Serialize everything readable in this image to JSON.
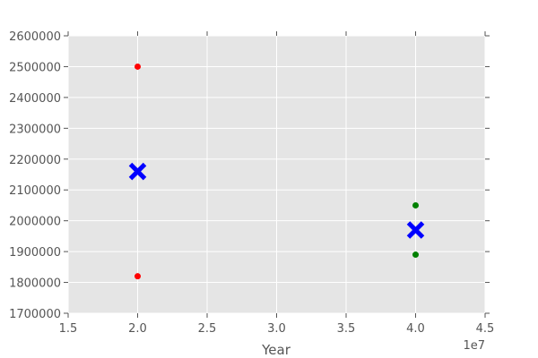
{
  "chart_data": {
    "type": "scatter",
    "xlabel": "Year",
    "ylabel": "",
    "x_offset_label": "1e7",
    "xlim": [
      15000000,
      45000000
    ],
    "ylim": [
      1700000,
      2600000
    ],
    "grid": true,
    "x_ticks": [
      15000000,
      20000000,
      25000000,
      30000000,
      35000000,
      40000000,
      45000000
    ],
    "x_tick_labels": [
      "1.5",
      "2.0",
      "2.5",
      "3.0",
      "3.5",
      "4.0",
      "4.5"
    ],
    "y_ticks": [
      1700000,
      1800000,
      1900000,
      2000000,
      2100000,
      2200000,
      2300000,
      2400000,
      2500000,
      2600000
    ],
    "y_tick_labels": [
      "1700000",
      "1800000",
      "1900000",
      "2000000",
      "2100000",
      "2200000",
      "2300000",
      "2400000",
      "2500000",
      "2600000"
    ],
    "series": [
      {
        "color": "#ff0000",
        "marker": "circle",
        "points": [
          {
            "x": 20000000,
            "y": 2500000
          },
          {
            "x": 20000000,
            "y": 1820000
          }
        ]
      },
      {
        "color": "#008000",
        "marker": "circle",
        "points": [
          {
            "x": 40000000,
            "y": 2050000
          },
          {
            "x": 40000000,
            "y": 1890000
          }
        ]
      },
      {
        "color": "#0000ff",
        "marker": "x",
        "points": [
          {
            "x": 20000000,
            "y": 2160000
          },
          {
            "x": 40000000,
            "y": 1970000
          }
        ]
      }
    ],
    "colors": {
      "background": "#e5e5e5",
      "grid": "#ffffff",
      "tick": "#555555"
    }
  }
}
